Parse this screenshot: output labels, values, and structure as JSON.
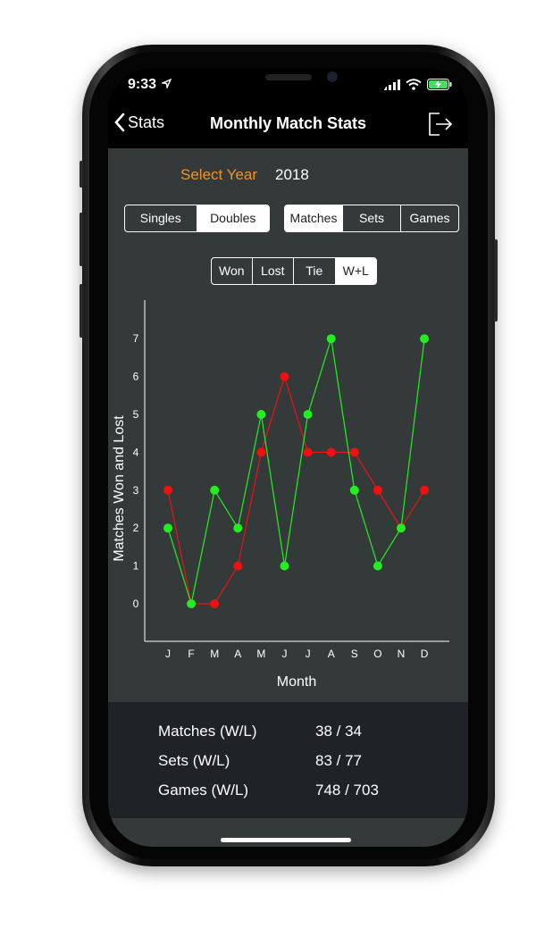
{
  "status": {
    "time": "9:33"
  },
  "nav": {
    "back_label": "Stats",
    "title": "Monthly Match Stats"
  },
  "year": {
    "label": "Select Year",
    "value": "2018"
  },
  "type_segment": {
    "options": [
      "Singles",
      "Doubles"
    ],
    "selected": "Doubles"
  },
  "metric_segment": {
    "options": [
      "Matches",
      "Sets",
      "Games"
    ],
    "selected": "Matches"
  },
  "result_segment": {
    "options": [
      "Won",
      "Lost",
      "Tie",
      "W+L"
    ],
    "selected": "W+L"
  },
  "colors": {
    "won": "#22ee22",
    "lost": "#ee1111",
    "accent": "#f0922b"
  },
  "chart_data": {
    "type": "line",
    "categories": [
      "J",
      "F",
      "M",
      "A",
      "M",
      "J",
      "J",
      "A",
      "S",
      "O",
      "N",
      "D"
    ],
    "xlabel": "Month",
    "ylabel": "Matches Won and Lost",
    "ylim": [
      0,
      7
    ],
    "yticks": [
      0,
      1,
      2,
      3,
      4,
      5,
      6,
      7
    ],
    "series": [
      {
        "values": [
          2,
          0,
          3,
          2,
          5,
          1,
          5,
          7,
          3,
          1,
          2,
          7
        ],
        "color": "#22ee22"
      },
      {
        "values": [
          3,
          0,
          0,
          1,
          4,
          6,
          4,
          4,
          4,
          3,
          2,
          3
        ],
        "color": "#ee1111"
      }
    ]
  },
  "stats": [
    {
      "label": "Matches (W/L)",
      "value": "38 / 34"
    },
    {
      "label": "Sets (W/L)",
      "value": "83 / 77"
    },
    {
      "label": "Games (W/L)",
      "value": "748 / 703"
    }
  ]
}
